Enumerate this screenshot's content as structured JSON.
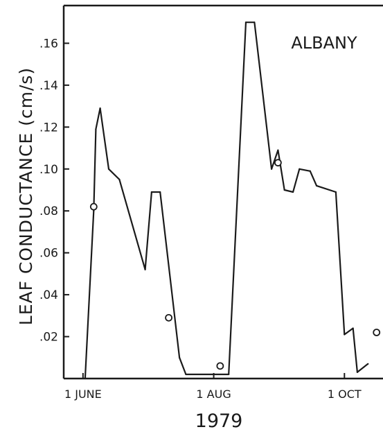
{
  "chart_data": {
    "type": "line",
    "title": "",
    "annotation": "ALBANY",
    "xlabel": "1979",
    "ylabel": "LEAF CONDUCTANCE (cm/s)",
    "x_unit": "day of year 1979",
    "xlim": [
      143,
      292
    ],
    "ylim": [
      0,
      0.178
    ],
    "x_ticks": [
      {
        "value": 152,
        "label": "1 JUNE"
      },
      {
        "value": 213,
        "label": "1 AUG"
      },
      {
        "value": 274,
        "label": "1 OCT"
      }
    ],
    "y_ticks": [
      {
        "value": 0.02,
        "label": ".02"
      },
      {
        "value": 0.04,
        "label": ".04"
      },
      {
        "value": 0.06,
        "label": ".06"
      },
      {
        "value": 0.08,
        "label": ".08"
      },
      {
        "value": 0.1,
        "label": ".10"
      },
      {
        "value": 0.12,
        "label": ".12"
      },
      {
        "value": 0.14,
        "label": ".14"
      },
      {
        "value": 0.16,
        "label": ".16"
      }
    ],
    "grid": false,
    "series": [
      {
        "kind": "line",
        "color": "#1a1a1a",
        "points": [
          {
            "x": 153,
            "y": 0.0
          },
          {
            "x": 157,
            "y": 0.08
          },
          {
            "x": 158,
            "y": 0.119
          },
          {
            "x": 160,
            "y": 0.129
          },
          {
            "x": 164,
            "y": 0.1
          },
          {
            "x": 169,
            "y": 0.095
          },
          {
            "x": 181,
            "y": 0.052
          },
          {
            "x": 184,
            "y": 0.089
          },
          {
            "x": 188,
            "y": 0.089
          },
          {
            "x": 197,
            "y": 0.01
          },
          {
            "x": 200,
            "y": 0.002
          },
          {
            "x": 220,
            "y": 0.002
          },
          {
            "x": 228,
            "y": 0.17
          },
          {
            "x": 232,
            "y": 0.17
          },
          {
            "x": 240,
            "y": 0.1
          },
          {
            "x": 243,
            "y": 0.109
          },
          {
            "x": 246,
            "y": 0.09
          },
          {
            "x": 250,
            "y": 0.089
          },
          {
            "x": 253,
            "y": 0.1
          },
          {
            "x": 258,
            "y": 0.099
          },
          {
            "x": 261,
            "y": 0.092
          },
          {
            "x": 270,
            "y": 0.089
          },
          {
            "x": 274,
            "y": 0.021
          },
          {
            "x": 278,
            "y": 0.024
          },
          {
            "x": 280,
            "y": 0.003
          },
          {
            "x": 285,
            "y": 0.007
          }
        ]
      },
      {
        "kind": "scatter",
        "marker": "open-circle",
        "color": "#1a1a1a",
        "points": [
          {
            "x": 157,
            "y": 0.082
          },
          {
            "x": 192,
            "y": 0.029
          },
          {
            "x": 216,
            "y": 0.006
          },
          {
            "x": 243,
            "y": 0.103
          },
          {
            "x": 289,
            "y": 0.022
          }
        ]
      }
    ]
  }
}
